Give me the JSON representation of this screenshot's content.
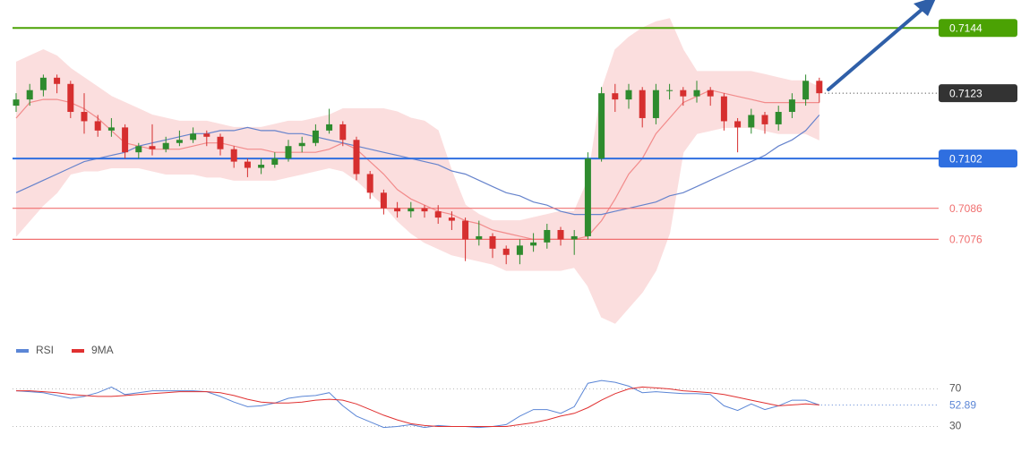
{
  "chart_data": [
    {
      "type": "candlestick",
      "open": [
        0.7119,
        0.7121,
        0.7124,
        0.7128,
        0.7126,
        0.7117,
        0.7114,
        0.7111,
        0.7112,
        0.7104,
        0.7106,
        0.7105,
        0.7107,
        0.7108,
        0.711,
        0.7109,
        0.7105,
        0.7101,
        0.7099,
        0.71,
        0.7102,
        0.7106,
        0.7107,
        0.7111,
        0.7113,
        0.7108,
        0.7097,
        0.7091,
        0.7086,
        0.7085,
        0.7086,
        0.7085,
        0.7083,
        0.7082,
        0.7076,
        0.7077,
        0.7073,
        0.7071,
        0.7074,
        0.7075,
        0.7079,
        0.7076,
        0.7077,
        0.7102,
        0.7123,
        0.7121,
        0.7124,
        0.7115,
        0.7124,
        0.7124,
        0.7122,
        0.7124,
        0.7122,
        0.7114,
        0.7112,
        0.7116,
        0.7113,
        0.7117,
        0.7121,
        0.7127
      ],
      "high": [
        0.7123,
        0.7126,
        0.7129,
        0.7129,
        0.7127,
        0.7123,
        0.7116,
        0.7115,
        0.7113,
        0.7107,
        0.7113,
        0.7109,
        0.7111,
        0.7112,
        0.7111,
        0.711,
        0.7106,
        0.7102,
        0.7102,
        0.7104,
        0.7108,
        0.7109,
        0.7113,
        0.7118,
        0.7114,
        0.7109,
        0.7098,
        0.7092,
        0.7088,
        0.7088,
        0.7087,
        0.7087,
        0.7085,
        0.7083,
        0.7082,
        0.7078,
        0.7074,
        0.7076,
        0.7078,
        0.7081,
        0.708,
        0.7079,
        0.7104,
        0.7125,
        0.7126,
        0.7126,
        0.7125,
        0.7126,
        0.7126,
        0.7125,
        0.7127,
        0.7125,
        0.7123,
        0.7115,
        0.7118,
        0.7117,
        0.7119,
        0.7123,
        0.7129,
        0.7128
      ],
      "low": [
        0.7117,
        0.7119,
        0.7122,
        0.7123,
        0.7115,
        0.711,
        0.7109,
        0.7109,
        0.7102,
        0.7102,
        0.7103,
        0.7104,
        0.7106,
        0.7107,
        0.7106,
        0.7103,
        0.7099,
        0.7096,
        0.7097,
        0.7099,
        0.7101,
        0.7104,
        0.7106,
        0.711,
        0.7106,
        0.7095,
        0.7089,
        0.7084,
        0.7083,
        0.7083,
        0.7083,
        0.7081,
        0.7079,
        0.7069,
        0.7074,
        0.707,
        0.7068,
        0.7068,
        0.7072,
        0.7073,
        0.7074,
        0.7071,
        0.7076,
        0.7101,
        0.7117,
        0.7118,
        0.7112,
        0.7113,
        0.7121,
        0.7119,
        0.712,
        0.7119,
        0.7111,
        0.7104,
        0.711,
        0.711,
        0.7111,
        0.7115,
        0.7119,
        0.712
      ],
      "close": [
        0.7121,
        0.7124,
        0.7128,
        0.7126,
        0.7117,
        0.7114,
        0.7111,
        0.7112,
        0.7104,
        0.7106,
        0.7105,
        0.7107,
        0.7108,
        0.711,
        0.7109,
        0.7105,
        0.7101,
        0.7099,
        0.71,
        0.7102,
        0.7106,
        0.7107,
        0.7111,
        0.7113,
        0.7108,
        0.7097,
        0.7091,
        0.7086,
        0.7085,
        0.7086,
        0.7085,
        0.7083,
        0.7082,
        0.7076,
        0.7077,
        0.7073,
        0.7071,
        0.7074,
        0.7075,
        0.7079,
        0.7076,
        0.7077,
        0.7102,
        0.7123,
        0.7121,
        0.7124,
        0.7115,
        0.7124,
        0.7124,
        0.7122,
        0.7124,
        0.7122,
        0.7114,
        0.7112,
        0.7116,
        0.7113,
        0.7117,
        0.7121,
        0.7127,
        0.7123
      ],
      "ylim": [
        0.7043,
        0.7153
      ],
      "up_color": "#2e8b2e",
      "down_color": "#d62f2f",
      "last_color": "#333333",
      "bands": {
        "color": "#fbdede",
        "upper": [
          0.7133,
          0.7135,
          0.7137,
          0.7135,
          0.7131,
          0.7128,
          0.7125,
          0.7122,
          0.712,
          0.7118,
          0.7116,
          0.7115,
          0.7114,
          0.7114,
          0.7114,
          0.7113,
          0.7112,
          0.7112,
          0.7112,
          0.7113,
          0.7114,
          0.7114,
          0.7115,
          0.7116,
          0.7118,
          0.7118,
          0.7118,
          0.7118,
          0.7117,
          0.7115,
          0.7114,
          0.7111,
          0.7098,
          0.7087,
          0.7084,
          0.7082,
          0.7082,
          0.7082,
          0.7083,
          0.7084,
          0.7085,
          0.7085,
          0.7095,
          0.7124,
          0.7137,
          0.7141,
          0.7144,
          0.7146,
          0.7147,
          0.7137,
          0.713,
          0.713,
          0.713,
          0.713,
          0.713,
          0.7129,
          0.7128,
          0.7127,
          0.7127,
          0.7125
        ],
        "lower": [
          0.7077,
          0.7082,
          0.7087,
          0.7091,
          0.7097,
          0.7098,
          0.7098,
          0.7099,
          0.7099,
          0.7099,
          0.7098,
          0.7097,
          0.7097,
          0.7097,
          0.7096,
          0.7096,
          0.7095,
          0.7095,
          0.7095,
          0.7095,
          0.7096,
          0.7097,
          0.7098,
          0.7099,
          0.7098,
          0.7095,
          0.7091,
          0.7087,
          0.7082,
          0.7078,
          0.7075,
          0.7073,
          0.7071,
          0.707,
          0.7069,
          0.7068,
          0.7066,
          0.7066,
          0.7066,
          0.7066,
          0.7066,
          0.7067,
          0.7061,
          0.7051,
          0.7049,
          0.7054,
          0.7059,
          0.7066,
          0.7078,
          0.7104,
          0.711,
          0.7111,
          0.7112,
          0.7112,
          0.7112,
          0.7111,
          0.711,
          0.711,
          0.711,
          0.7108
        ]
      },
      "series": [
        {
          "color": "#f28b8b",
          "values": [
            0.7115,
            0.712,
            0.7121,
            0.7121,
            0.712,
            0.7118,
            0.7115,
            0.7111,
            0.7107,
            0.7106,
            0.7105,
            0.7105,
            0.7105,
            0.7106,
            0.7107,
            0.7107,
            0.7106,
            0.7105,
            0.7105,
            0.7104,
            0.7104,
            0.7104,
            0.7104,
            0.7105,
            0.7107,
            0.7105,
            0.7101,
            0.7097,
            0.7092,
            0.7089,
            0.7087,
            0.7085,
            0.7084,
            0.7082,
            0.7081,
            0.7079,
            0.7078,
            0.7077,
            0.7076,
            0.7076,
            0.7076,
            0.7076,
            0.7077,
            0.7082,
            0.7089,
            0.7097,
            0.7102,
            0.711,
            0.7115,
            0.712,
            0.7122,
            0.7124,
            0.7123,
            0.7122,
            0.7121,
            0.712,
            0.712,
            0.712,
            0.712,
            0.712
          ]
        },
        {
          "color": "#6683cc",
          "values": [
            0.7091,
            0.7093,
            0.7095,
            0.7097,
            0.7099,
            0.7101,
            0.7102,
            0.7103,
            0.7104,
            0.7106,
            0.7107,
            0.7108,
            0.7109,
            0.711,
            0.711,
            0.7111,
            0.7111,
            0.7112,
            0.7111,
            0.7111,
            0.711,
            0.711,
            0.7109,
            0.7108,
            0.7107,
            0.7106,
            0.7105,
            0.7104,
            0.7103,
            0.7102,
            0.7101,
            0.71,
            0.7098,
            0.7097,
            0.7095,
            0.7093,
            0.7091,
            0.709,
            0.7088,
            0.7087,
            0.7085,
            0.7084,
            0.7084,
            0.7084,
            0.7085,
            0.7086,
            0.7087,
            0.7088,
            0.709,
            0.7091,
            0.7093,
            0.7095,
            0.7097,
            0.7099,
            0.7101,
            0.7103,
            0.7106,
            0.7108,
            0.7111,
            0.7116
          ]
        }
      ],
      "levels": [
        {
          "value": 0.7144,
          "color": "#4ba204",
          "label_style": "box"
        },
        {
          "value": 0.7102,
          "color": "#2f6fe0",
          "label_style": "box"
        },
        {
          "value": 0.7086,
          "color": "#f07070",
          "label_style": "text"
        },
        {
          "value": 0.7076,
          "color": "#f07070",
          "label_style": "text"
        }
      ]
    },
    {
      "type": "line",
      "series": [
        {
          "name": "RSI",
          "color": "#5b86d6",
          "values": [
            68,
            67,
            66,
            63,
            60,
            62,
            66,
            72,
            64,
            66,
            68,
            68,
            68,
            68,
            67,
            62,
            56,
            51,
            52,
            55,
            60,
            62,
            63,
            66,
            52,
            41,
            35,
            29,
            30,
            32,
            29,
            31,
            30,
            30,
            29,
            30,
            32,
            41,
            48,
            48,
            44,
            51,
            76,
            79,
            77,
            73,
            66,
            67,
            66,
            65,
            65,
            64,
            52,
            47,
            54,
            48,
            52,
            58,
            58,
            52.89
          ]
        },
        {
          "name": "9MA",
          "color": "#e03030",
          "values": [
            68,
            68,
            67,
            66,
            64,
            63,
            62,
            62,
            63,
            64,
            65,
            66,
            67,
            67,
            67,
            66,
            63,
            59,
            56,
            55,
            55,
            56,
            58,
            59,
            58,
            54,
            48,
            42,
            37,
            33,
            31,
            30,
            30,
            30,
            30,
            30,
            30,
            32,
            34,
            37,
            41,
            44,
            50,
            58,
            65,
            70,
            72,
            71,
            70,
            68,
            67,
            66,
            64,
            61,
            58,
            55,
            52,
            53,
            54,
            53
          ]
        }
      ],
      "ylim": [
        20,
        80
      ],
      "yticks": [
        30,
        70
      ]
    }
  ]
}
